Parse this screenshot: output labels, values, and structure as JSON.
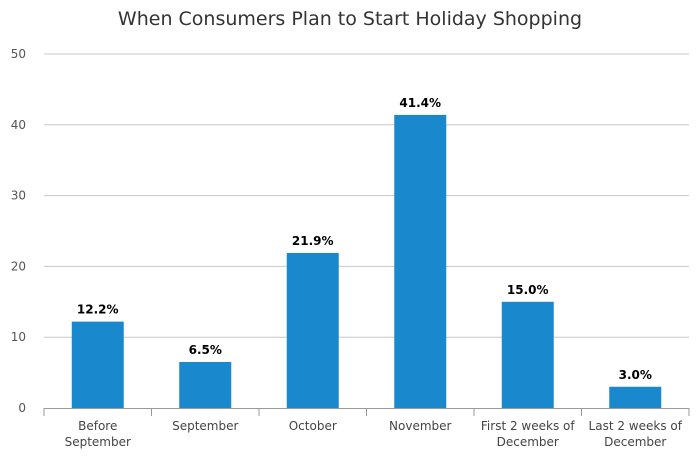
{
  "chart_data": {
    "type": "bar",
    "title": "When Consumers Plan to Start Holiday Shopping",
    "xlabel": "",
    "ylabel": "",
    "categories": [
      [
        "Before",
        "September"
      ],
      [
        "September"
      ],
      [
        "October"
      ],
      [
        "November"
      ],
      [
        "First 2 weeks of",
        "December"
      ],
      [
        "Last 2 weeks of",
        "December"
      ]
    ],
    "values": [
      12.2,
      6.5,
      21.9,
      41.4,
      15.0,
      3.0
    ],
    "data_labels": [
      "12.2%",
      "6.5%",
      "21.9%",
      "41.4%",
      "15.0%",
      "3.0%"
    ],
    "ylim": [
      0,
      50
    ],
    "yticks": [
      0,
      10,
      20,
      30,
      40,
      50
    ],
    "grid": true,
    "legend": "none",
    "bar_color": "#1a88cc",
    "grid_color": "#c8c8c8"
  }
}
